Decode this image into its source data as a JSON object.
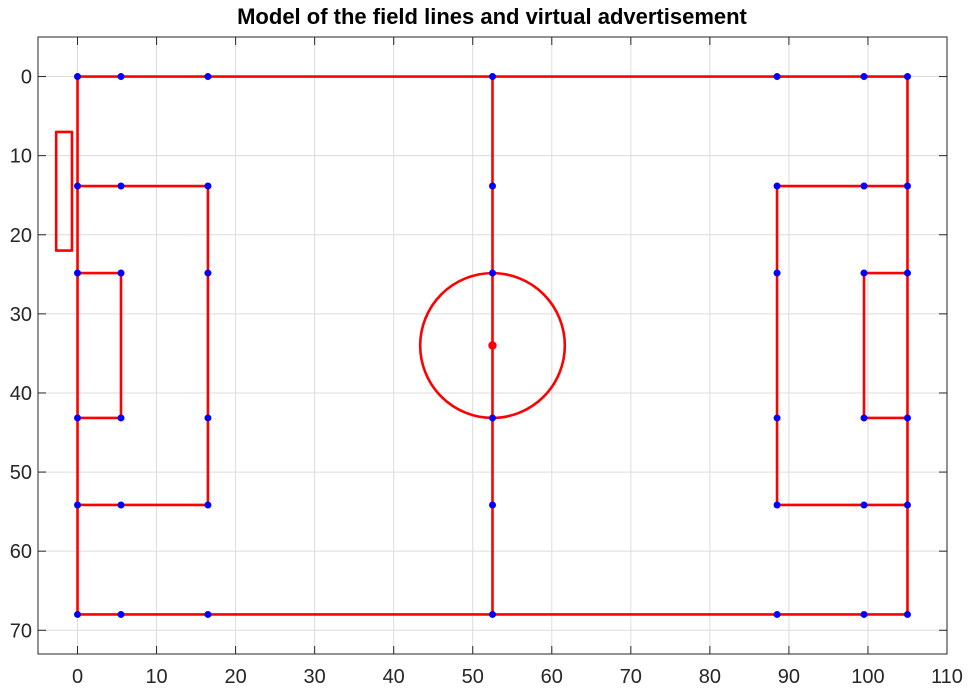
{
  "chart_data": {
    "type": "line",
    "title": "Model of the field lines and virtual advertisement",
    "xlabel": "",
    "ylabel": "",
    "xlim": [
      -5,
      110
    ],
    "ylim": [
      -5,
      73
    ],
    "y_reversed": true,
    "x_ticks": [
      0,
      10,
      20,
      30,
      40,
      50,
      60,
      70,
      80,
      90,
      100,
      110
    ],
    "y_ticks": [
      0,
      10,
      20,
      30,
      40,
      50,
      60,
      70
    ],
    "grid": true,
    "legend": "none",
    "colors": {
      "lines": "#ff0000",
      "points": "#0000ff",
      "center_spot": "#ff0000"
    },
    "series": [
      {
        "label_id": "outer-boundary",
        "x": [
          0,
          105,
          105,
          0,
          0
        ],
        "y": [
          0,
          0,
          68,
          68,
          0
        ]
      },
      {
        "label_id": "halfway-line",
        "x": [
          52.5,
          52.5
        ],
        "y": [
          0,
          68
        ]
      },
      {
        "label_id": "left-penalty-area",
        "x": [
          0,
          16.5,
          16.5,
          0
        ],
        "y": [
          13.84,
          13.84,
          54.16,
          54.16
        ]
      },
      {
        "label_id": "left-goal-area",
        "x": [
          0,
          5.5,
          5.5,
          0
        ],
        "y": [
          24.84,
          24.84,
          43.16,
          43.16
        ]
      },
      {
        "label_id": "right-penalty-area",
        "x": [
          105,
          88.5,
          88.5,
          105
        ],
        "y": [
          13.84,
          13.84,
          54.16,
          54.16
        ]
      },
      {
        "label_id": "right-goal-area",
        "x": [
          105,
          99.5,
          99.5,
          105
        ],
        "y": [
          24.84,
          24.84,
          43.16,
          43.16
        ]
      },
      {
        "label_id": "virtual-advertisement",
        "x": [
          -2.7,
          -0.7,
          -0.7,
          -2.7,
          -2.7
        ],
        "y": [
          7,
          7,
          22,
          22,
          7
        ]
      }
    ],
    "center_circle": {
      "center": [
        52.5,
        34
      ],
      "radius": 9.15
    },
    "center_spot": [
      52.5,
      34
    ],
    "key_points": [
      [
        0,
        0
      ],
      [
        5.5,
        0
      ],
      [
        16.5,
        0
      ],
      [
        52.5,
        0
      ],
      [
        88.5,
        0
      ],
      [
        99.5,
        0
      ],
      [
        105,
        0
      ],
      [
        0,
        13.84
      ],
      [
        5.5,
        13.84
      ],
      [
        16.5,
        13.84
      ],
      [
        52.5,
        13.84
      ],
      [
        88.5,
        13.84
      ],
      [
        99.5,
        13.84
      ],
      [
        105,
        13.84
      ],
      [
        0,
        24.84
      ],
      [
        5.5,
        24.84
      ],
      [
        16.5,
        24.84
      ],
      [
        52.5,
        24.84
      ],
      [
        88.5,
        24.84
      ],
      [
        99.5,
        24.84
      ],
      [
        105,
        24.84
      ],
      [
        0,
        43.16
      ],
      [
        5.5,
        43.16
      ],
      [
        16.5,
        43.16
      ],
      [
        52.5,
        43.16
      ],
      [
        88.5,
        43.16
      ],
      [
        99.5,
        43.16
      ],
      [
        105,
        43.16
      ],
      [
        0,
        54.16
      ],
      [
        5.5,
        54.16
      ],
      [
        16.5,
        54.16
      ],
      [
        52.5,
        54.16
      ],
      [
        88.5,
        54.16
      ],
      [
        99.5,
        54.16
      ],
      [
        105,
        54.16
      ],
      [
        0,
        68
      ],
      [
        5.5,
        68
      ],
      [
        16.5,
        68
      ],
      [
        52.5,
        68
      ],
      [
        88.5,
        68
      ],
      [
        99.5,
        68
      ],
      [
        105,
        68
      ]
    ]
  }
}
